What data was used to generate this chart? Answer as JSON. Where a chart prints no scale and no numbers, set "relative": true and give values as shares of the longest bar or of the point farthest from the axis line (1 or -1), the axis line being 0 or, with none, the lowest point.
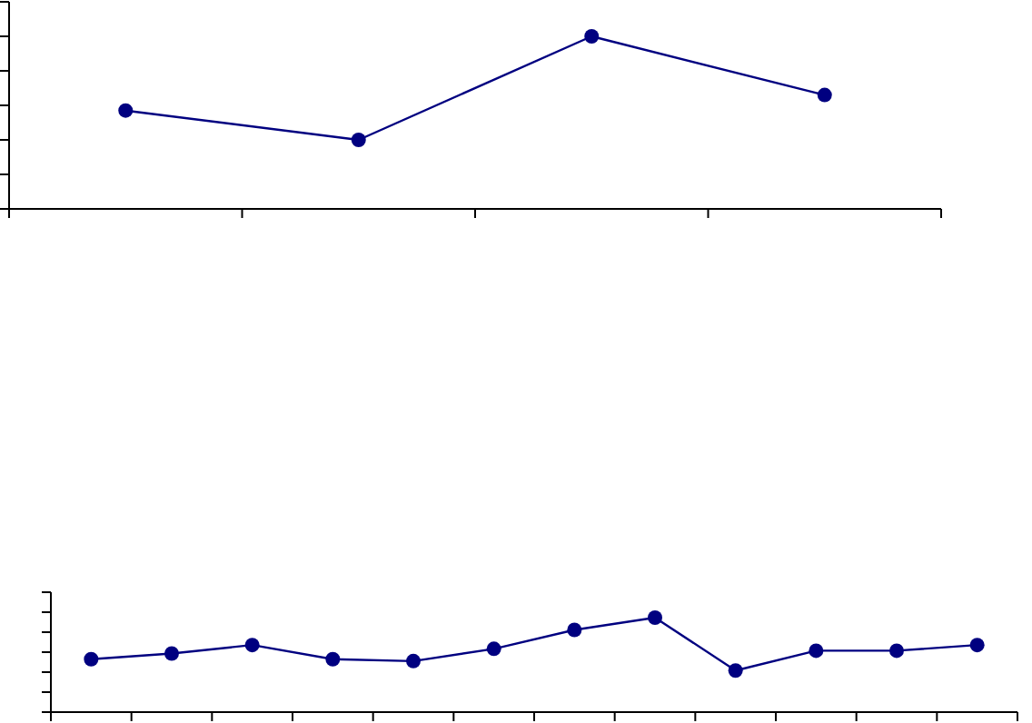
{
  "chart_data": [
    {
      "type": "line",
      "relative": true,
      "categories": [
        null,
        null,
        null,
        null
      ],
      "series": [
        {
          "color": "#000080",
          "values": [
            0.57,
            0.4,
            1,
            0.66
          ]
        }
      ],
      "marker": "circle"
    },
    {
      "type": "line",
      "relative": true,
      "categories": [
        null,
        null,
        null,
        null,
        null,
        null,
        null,
        null,
        null,
        null,
        null,
        null
      ],
      "series": [
        {
          "color": "#000080",
          "values": [
            0.56,
            0.62,
            0.71,
            0.56,
            0.54,
            0.67,
            0.87,
            1,
            0.44,
            0.65,
            0.65,
            0.71
          ]
        }
      ],
      "marker": "circle"
    }
  ]
}
